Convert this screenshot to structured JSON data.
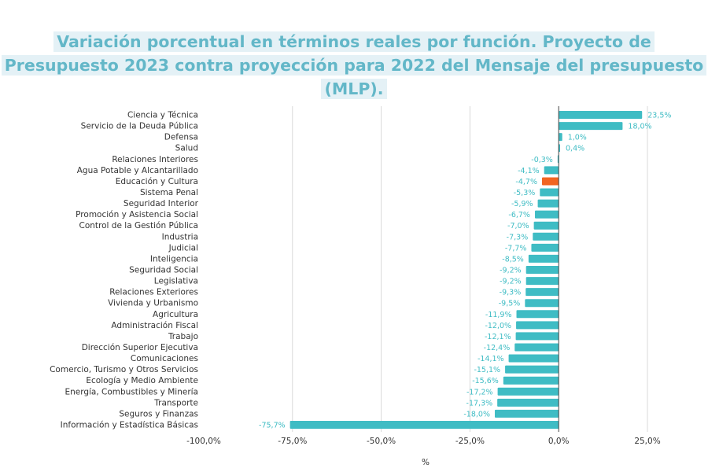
{
  "chart_data": {
    "type": "bar",
    "orientation": "horizontal",
    "title": "Variación porcentual en términos reales por función. Proyecto de Presupuesto 2023 contra proyección para 2022 del Mensaje del presupuesto (MLP).",
    "xlabel": "%",
    "ylabel": "",
    "xlim": [
      -100,
      25
    ],
    "xticks": [
      "-100,0%",
      "-75,0%",
      "-50,0%",
      "-25,0%",
      "0,0%",
      "25,0%"
    ],
    "grid": "vertical",
    "categories": [
      "Ciencia y Técnica",
      "Servicio de la Deuda Pública",
      "Defensa",
      "Salud",
      "Relaciones Interiores",
      "Agua Potable y Alcantarillado",
      "Educación y Cultura",
      "Sistema Penal",
      "Seguridad Interior",
      "Promoción y Asistencia Social",
      "Control de la Gestión Pública",
      "Industria",
      "Judicial",
      "Inteligencia",
      "Seguridad Social",
      "Legislativa",
      "Relaciones Exteriores",
      "Vivienda y Urbanismo",
      "Agricultura",
      "Administración Fiscal",
      "Trabajo",
      "Dirección Superior Ejecutiva",
      "Comunicaciones",
      "Comercio, Turismo y Otros Servicios",
      "Ecología y Medio Ambiente",
      "Energía, Combustibles y Minería",
      "Transporte",
      "Seguros y Finanzas",
      "Información y Estadística Básicas"
    ],
    "values": [
      23.5,
      18.0,
      1.0,
      0.4,
      -0.3,
      -4.1,
      -4.7,
      -5.3,
      -5.9,
      -6.7,
      -7.0,
      -7.3,
      -7.7,
      -8.5,
      -9.2,
      -9.2,
      -9.3,
      -9.5,
      -11.9,
      -12.0,
      -12.1,
      -12.4,
      -14.1,
      -15.1,
      -15.6,
      -17.2,
      -17.3,
      -18.0,
      -75.7
    ],
    "data_labels": [
      "23,5%",
      "18,0%",
      "1,0%",
      "0,4%",
      "-0,3%",
      "-4,1%",
      "-4,7%",
      "-5,3%",
      "-5,9%",
      "-6,7%",
      "-7,0%",
      "-7,3%",
      "-7,7%",
      "-8,5%",
      "-9,2%",
      "-9,2%",
      "-9,3%",
      "-9,5%",
      "-11,9%",
      "-12,0%",
      "-12,1%",
      "-12,4%",
      "-14,1%",
      "-15,1%",
      "-15,6%",
      "-17,2%",
      "-17,3%",
      "-18,0%",
      "-75,7%"
    ],
    "highlight_category": "Educación y Cultura",
    "colors": {
      "bar": "#3fbcc4",
      "highlight": "#f26522",
      "title": "#63b7c8",
      "title_background": "#e4f1f6"
    }
  }
}
